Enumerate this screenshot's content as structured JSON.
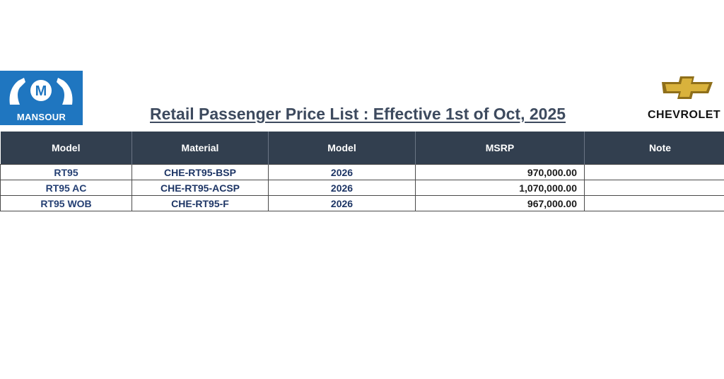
{
  "logos": {
    "left_brand": "MANSOUR",
    "left_mark": "M",
    "right_brand": "CHEVROLET"
  },
  "title": "Retail Passenger Price List :  Effective 1st of Oct, 2025",
  "table": {
    "headers": [
      "Model",
      "Material",
      "Model",
      "MSRP",
      "Note"
    ],
    "rows": [
      {
        "model": "RT95",
        "material": "CHE-RT95-BSP",
        "year": "2026",
        "msrp": "970,000.00",
        "note": ""
      },
      {
        "model": "RT95 AC",
        "material": "CHE-RT95-ACSP",
        "year": "2026",
        "msrp": "1,070,000.00",
        "note": ""
      },
      {
        "model": "RT95 WOB",
        "material": "CHE-RT95-F",
        "year": "2026",
        "msrp": "967,000.00",
        "note": ""
      }
    ]
  },
  "colors": {
    "header_bg": "#323f4f",
    "mansour_blue": "#1f76c0",
    "chevrolet_gold": "#d9b23c",
    "title_text": "#3d4a5e"
  }
}
